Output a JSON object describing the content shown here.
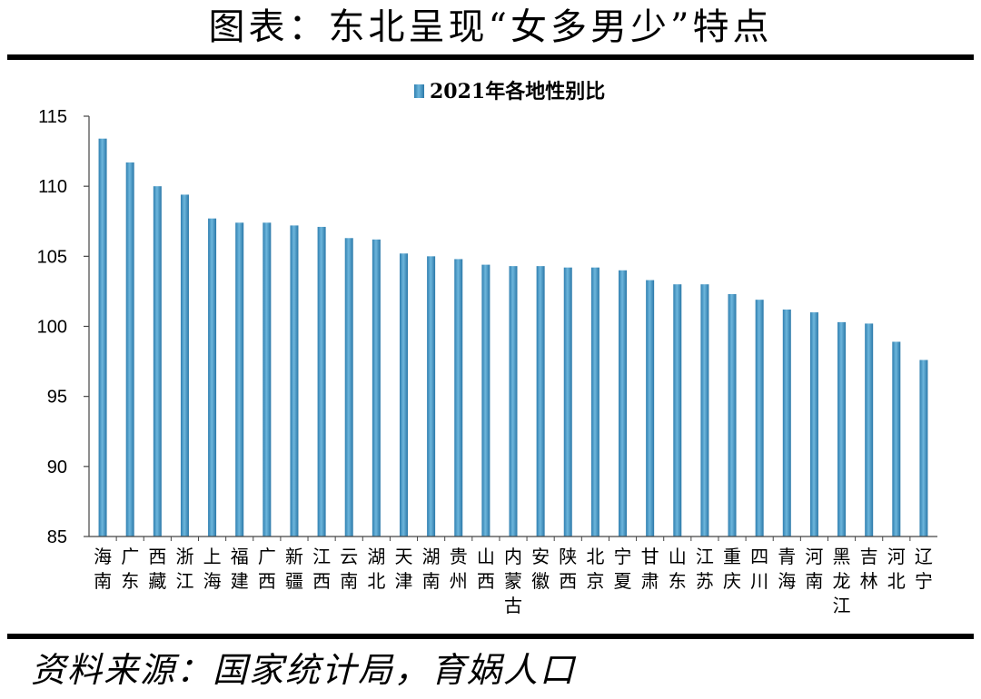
{
  "header": {
    "title": "图表：东北呈现“女多男少”特点"
  },
  "footer": {
    "source": "资料来源：国家统计局，育娲人口"
  },
  "chart_data": {
    "type": "bar",
    "title": "",
    "legend": [
      "2021年各地性别比"
    ],
    "legend_position": "top-center",
    "bar_color": "#4A9CC8",
    "xlabel": "",
    "ylabel": "",
    "ylim": [
      85,
      115
    ],
    "yticks": [
      85,
      90,
      95,
      100,
      105,
      110,
      115
    ],
    "grid": false,
    "categories": [
      "海南",
      "广东",
      "西藏",
      "浙江",
      "上海",
      "福建",
      "广西",
      "新疆",
      "江西",
      "云南",
      "湖北",
      "天津",
      "湖南",
      "贵州",
      "山西",
      "内蒙古",
      "安徽",
      "陕西",
      "北京",
      "宁夏",
      "甘肃",
      "山东",
      "江苏",
      "重庆",
      "四川",
      "青海",
      "河南",
      "黑龙江",
      "吉林",
      "河北",
      "辽宁"
    ],
    "series": [
      {
        "name": "2021年各地性别比",
        "values": [
          113.4,
          111.7,
          110.0,
          109.4,
          107.7,
          107.4,
          107.4,
          107.2,
          107.1,
          106.3,
          106.2,
          105.2,
          105.0,
          104.8,
          104.4,
          104.3,
          104.3,
          104.2,
          104.2,
          104.0,
          103.3,
          103.0,
          103.0,
          102.3,
          101.9,
          101.2,
          101.0,
          100.3,
          100.2,
          98.9,
          97.6
        ]
      }
    ]
  }
}
